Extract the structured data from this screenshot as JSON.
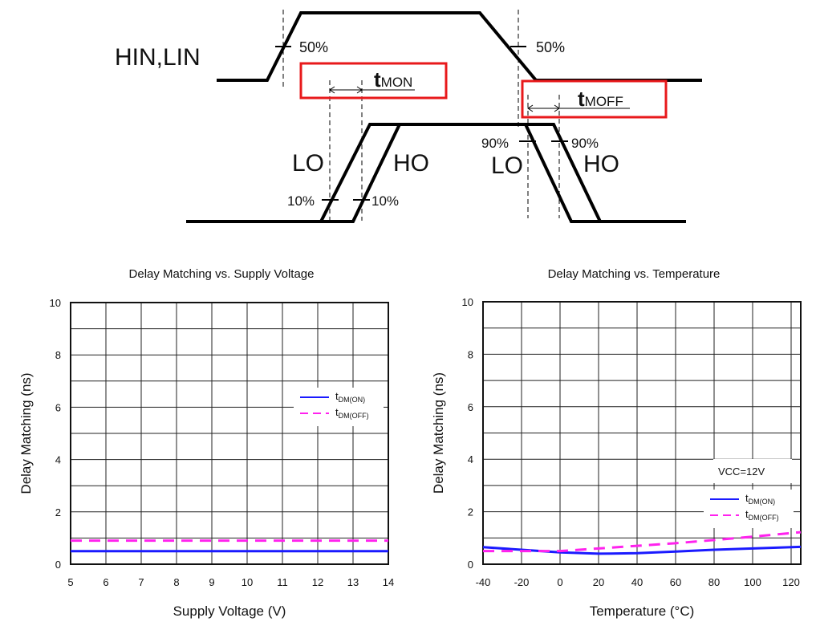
{
  "timing_diagram": {
    "input_label": "HIN,LIN",
    "pct_50_left": "50%",
    "pct_50_right": "50%",
    "lo_on": "LO",
    "ho_on": "HO",
    "lo_off": "LO",
    "ho_off": "HO",
    "pct_10_left": "10%",
    "pct_10_right": "10%",
    "pct_90_left": "90%",
    "pct_90_right": "90%",
    "tmon_t": "t",
    "tmon_sub": "MON",
    "tmoff_t": "t",
    "tmoff_sub": "MOFF",
    "highlight_color": "#e8191b"
  },
  "chart_data": [
    {
      "type": "line",
      "title": "Delay Matching vs. Supply Voltage",
      "xlabel": "Supply Voltage (V)",
      "ylabel": "Delay Matching (ns)",
      "xlim": [
        5,
        14
      ],
      "ylim": [
        0,
        10
      ],
      "xticks": [
        "5",
        "6",
        "7",
        "8",
        "9",
        "10",
        "11",
        "12",
        "13",
        "14"
      ],
      "yticks": [
        "0",
        "2",
        "4",
        "6",
        "8",
        "10"
      ],
      "grid": true,
      "legend_position": "middle-right",
      "annotation": "",
      "series": [
        {
          "name": "tDM(ON)",
          "t": "t",
          "sub": "DM(ON)",
          "color": "#1a1aff",
          "dash": false,
          "x": [
            5,
            14
          ],
          "y": [
            0.5,
            0.5
          ]
        },
        {
          "name": "tDM(OFF)",
          "t": "t",
          "sub": "DM(OFF)",
          "color": "#ff22ee",
          "dash": true,
          "x": [
            5,
            14
          ],
          "y": [
            0.9,
            0.9
          ]
        }
      ]
    },
    {
      "type": "line",
      "title": "Delay Matching vs. Temperature",
      "xlabel": "Temperature (°C)",
      "ylabel": "Delay Matching (ns)",
      "xlim": [
        -40,
        125
      ],
      "ylim": [
        0,
        10
      ],
      "xticks": [
        "-40",
        "-20",
        "0",
        "20",
        "40",
        "60",
        "80",
        "100",
        "120"
      ],
      "yticks": [
        "0",
        "2",
        "4",
        "6",
        "8",
        "10"
      ],
      "grid": true,
      "legend_position": "bottom-right",
      "annotation": "VCC=12V",
      "series": [
        {
          "name": "tDM(ON)",
          "t": "t",
          "sub": "DM(ON)",
          "color": "#1a1aff",
          "dash": false,
          "x": [
            -40,
            -20,
            0,
            20,
            40,
            60,
            80,
            100,
            125
          ],
          "y": [
            0.65,
            0.55,
            0.45,
            0.4,
            0.42,
            0.48,
            0.55,
            0.6,
            0.66
          ]
        },
        {
          "name": "tDM(OFF)",
          "t": "t",
          "sub": "DM(OFF)",
          "color": "#ff22ee",
          "dash": true,
          "x": [
            -40,
            -20,
            0,
            20,
            40,
            60,
            80,
            100,
            125
          ],
          "y": [
            0.5,
            0.5,
            0.5,
            0.6,
            0.7,
            0.8,
            0.92,
            1.05,
            1.22
          ]
        }
      ]
    }
  ]
}
